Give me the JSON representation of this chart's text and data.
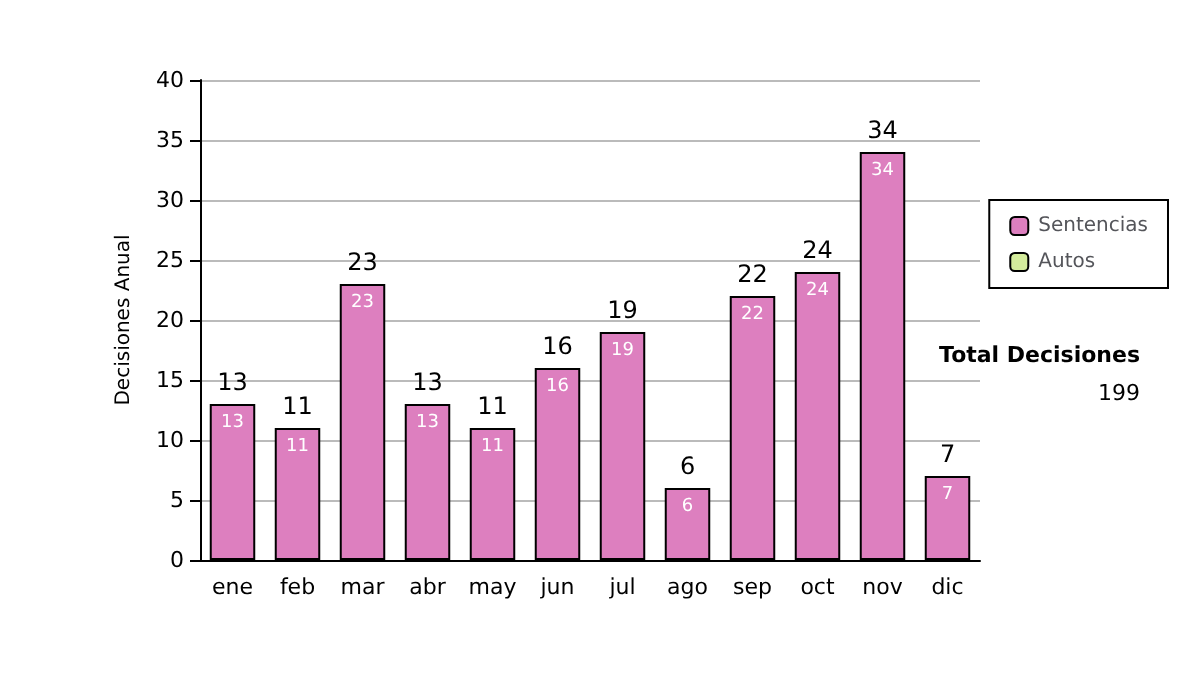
{
  "chart_data": {
    "type": "bar",
    "ylabel": "Decisiones Anual",
    "categories": [
      "ene",
      "feb",
      "mar",
      "abr",
      "may",
      "jun",
      "jul",
      "ago",
      "sep",
      "oct",
      "nov",
      "dic"
    ],
    "series": [
      {
        "name": "Sentencias",
        "color": "#dd7fbf",
        "values": [
          13,
          11,
          23,
          13,
          11,
          16,
          19,
          6,
          22,
          24,
          34,
          7
        ],
        "value_labels": [
          "13",
          "11",
          "23",
          "13",
          "11",
          "16",
          "19",
          "6",
          "22",
          "24",
          "34",
          "7"
        ]
      },
      {
        "name": "Autos",
        "color": "#d4ec9c",
        "values": [
          0,
          0,
          0,
          0,
          0,
          0,
          0,
          0,
          0,
          0,
          0,
          0
        ]
      }
    ],
    "stacked": true,
    "totals": [
      "13",
      "11",
      "23",
      "13",
      "11",
      "16",
      "19",
      "6",
      "22",
      "24",
      "34",
      "7"
    ],
    "ylim": [
      0,
      40
    ],
    "yticks": [
      0,
      5,
      10,
      15,
      20,
      25,
      30,
      35,
      40
    ],
    "grid": "y",
    "legend": "right",
    "annotations": [
      "Total Decisiones",
      "199"
    ]
  }
}
